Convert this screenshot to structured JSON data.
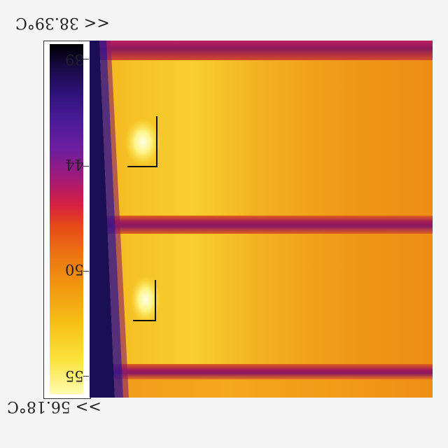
{
  "scale": {
    "max_label": "<< 38.39°C",
    "min_label": ">> 56.18°C",
    "ticks": [
      "39",
      "44",
      "50",
      "55"
    ]
  },
  "image": {
    "subject": "thermal image of solar panel"
  }
}
